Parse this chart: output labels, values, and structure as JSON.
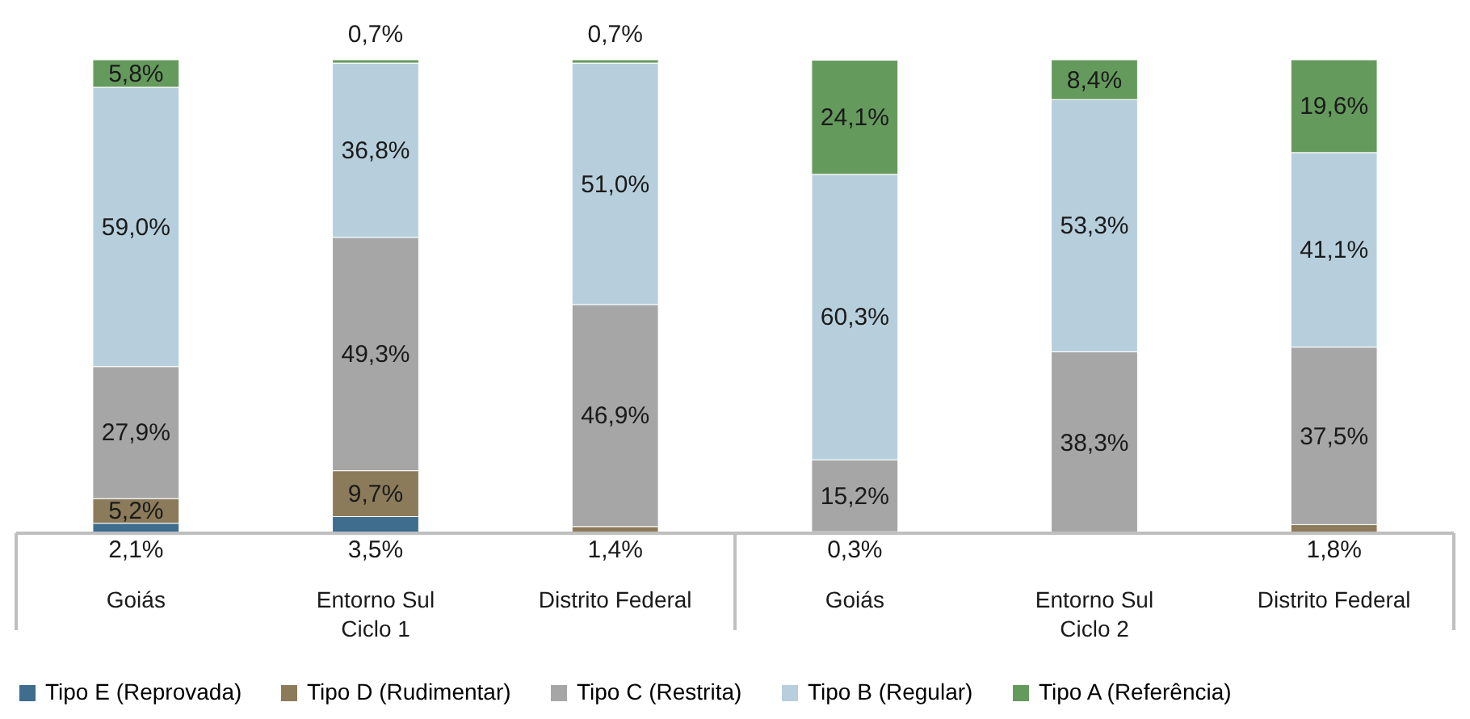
{
  "chart_data": {
    "type": "bar",
    "stacked": true,
    "legend": "bottom",
    "categories": [
      "Goiás",
      "Entorno Sul",
      "Distrito Federal",
      "Goiás",
      "Entorno Sul",
      "Distrito Federal"
    ],
    "annotations": [
      "Ciclo 1",
      "Ciclo 2"
    ],
    "series": [
      {
        "name": "Tipo E (Reprovada)",
        "color": "#3e6d8e",
        "values": [
          2.1,
          3.5,
          null,
          null,
          null,
          null
        ],
        "value_labels": [
          "2,1%",
          "3,5%",
          null,
          null,
          null,
          null
        ]
      },
      {
        "name": "Tipo D (Rudimentar)",
        "color": "#8c7b5a",
        "values": [
          5.2,
          9.7,
          1.4,
          0.3,
          null,
          1.8
        ],
        "value_labels": [
          "5,2%",
          "9,7%",
          "1,4%",
          "0,3%",
          null,
          "1,8%"
        ]
      },
      {
        "name": "Tipo C (Restrita)",
        "color": "#a6a6a6",
        "values": [
          27.9,
          49.3,
          46.9,
          15.2,
          38.3,
          37.5
        ],
        "value_labels": [
          "27,9%",
          "49,3%",
          "46,9%",
          "15,2%",
          "38,3%",
          "37,5%"
        ]
      },
      {
        "name": "Tipo B (Regular)",
        "color": "#b7cfdc",
        "values": [
          59.0,
          36.8,
          51.0,
          60.3,
          53.3,
          41.1
        ],
        "value_labels": [
          "59,0%",
          "36,8%",
          "51,0%",
          "60,3%",
          "53,3%",
          "41,1%"
        ]
      },
      {
        "name": "Tipo A (Referência)",
        "color": "#659a5d",
        "values": [
          5.8,
          0.7,
          0.7,
          24.1,
          8.4,
          19.6
        ],
        "value_labels": [
          "5,8%",
          "0,7%",
          "0,7%",
          "24,1%",
          "8,4%",
          "19,6%"
        ]
      }
    ]
  }
}
